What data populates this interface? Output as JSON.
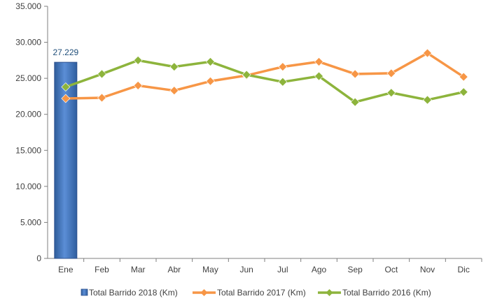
{
  "chart_data": {
    "type": "bar+line",
    "categories": [
      "Ene",
      "Feb",
      "Mar",
      "Abr",
      "May",
      "Jun",
      "Jul",
      "Ago",
      "Sep",
      "Oct",
      "Nov",
      "Dic"
    ],
    "ylim": [
      0,
      35000
    ],
    "yticks": [
      0,
      5000,
      10000,
      15000,
      20000,
      25000,
      30000,
      35000
    ],
    "ytick_labels": [
      "0",
      "5.000",
      "10.000",
      "15.000",
      "20.000",
      "25.000",
      "30.000",
      "35.000"
    ],
    "grid": false,
    "legend_position": "bottom",
    "bars": {
      "name": "Total Barrido 2018 (Km)",
      "values": [
        27229
      ],
      "data_labels": [
        "27.229"
      ],
      "color": "#4472C4"
    },
    "series": [
      {
        "name": "Total Barrido 2017 (Km)",
        "type": "line",
        "marker": "diamond",
        "color": "#F79646",
        "values": [
          22200,
          22300,
          24000,
          23300,
          24600,
          25400,
          26600,
          27300,
          25600,
          25700,
          28500,
          25200
        ]
      },
      {
        "name": "Total Barrido 2016 (Km)",
        "type": "line",
        "marker": "diamond",
        "color": "#8DB43C",
        "values": [
          23800,
          25600,
          27500,
          26600,
          27300,
          25500,
          24500,
          25300,
          21700,
          23000,
          22000,
          23100
        ]
      }
    ]
  }
}
